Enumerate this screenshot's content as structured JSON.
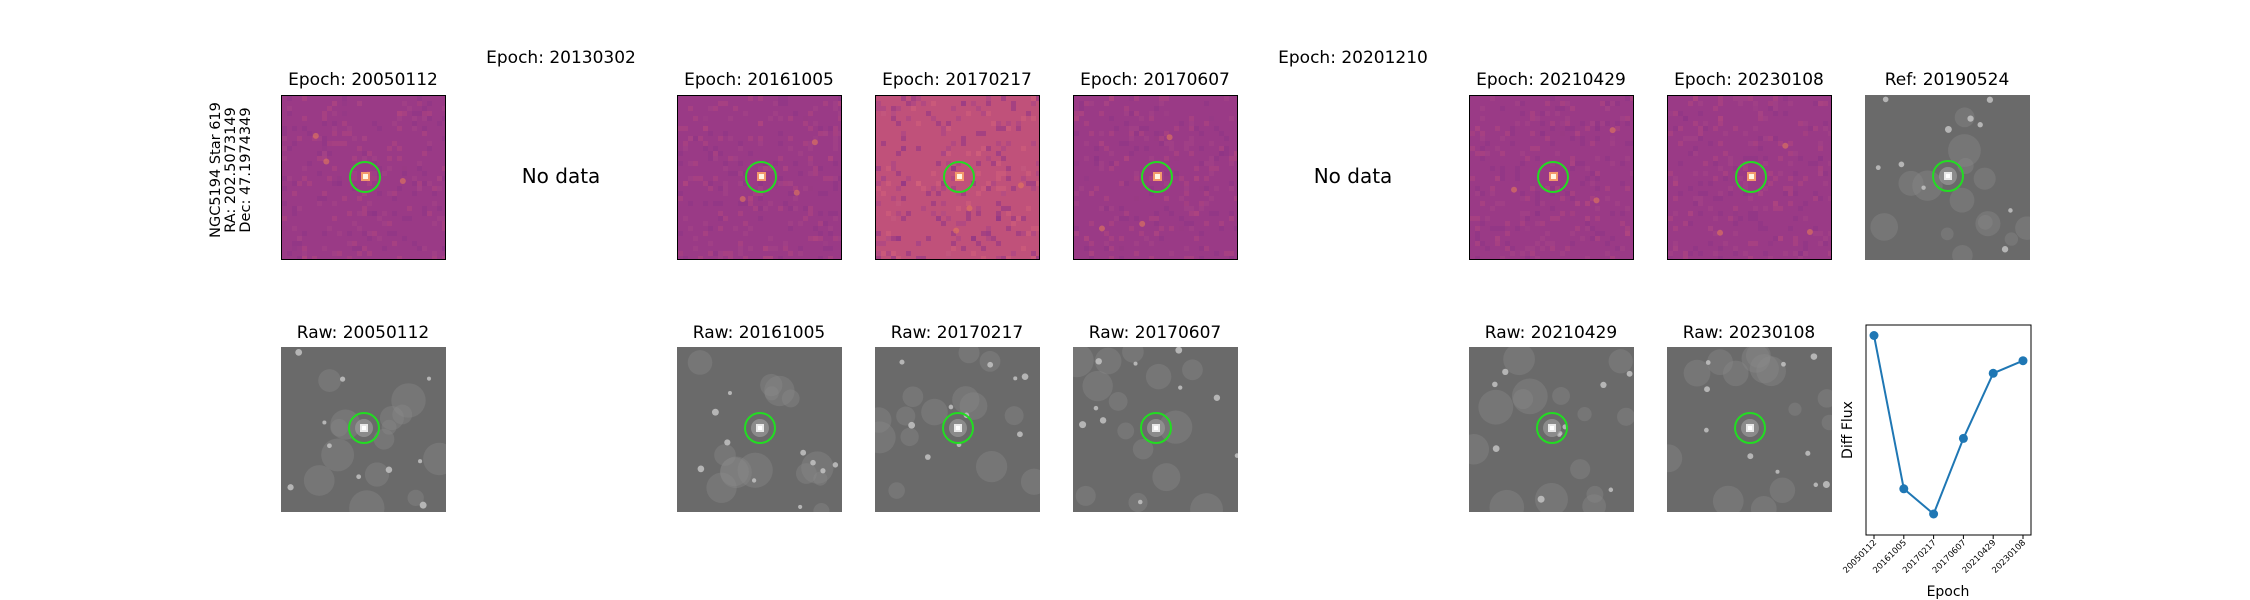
{
  "target": {
    "name": "NGC5194 Star 619",
    "ra_label": "RA: 202.5073149",
    "dec_label": "Dec: 47.1974349"
  },
  "top_row": [
    {
      "title": "Epoch: 20050112",
      "has_data": true
    },
    {
      "title": "Epoch: 20130302",
      "has_data": false,
      "nodata_text": "No data"
    },
    {
      "title": "Epoch: 20161005",
      "has_data": true
    },
    {
      "title": "Epoch: 20170217",
      "has_data": true
    },
    {
      "title": "Epoch: 20170607",
      "has_data": true
    },
    {
      "title": "Epoch: 20201210",
      "has_data": false,
      "nodata_text": "No data"
    },
    {
      "title": "Epoch: 20210429",
      "has_data": true
    },
    {
      "title": "Epoch: 20230108",
      "has_data": true
    },
    {
      "title": "Ref: 20190524",
      "has_data": true
    }
  ],
  "bottom_row": [
    {
      "title": "Raw: 20050112"
    },
    {
      "title": ""
    },
    {
      "title": "Raw: 20161005"
    },
    {
      "title": "Raw: 20170217"
    },
    {
      "title": "Raw: 20170607"
    },
    {
      "title": ""
    },
    {
      "title": "Raw: 20210429"
    },
    {
      "title": "Raw: 20230108"
    }
  ],
  "colors": {
    "diff_background": "#9a3a86",
    "diff_background_bright": "#c0517a",
    "raw_background": "#6a6a6a",
    "circle": "#22dd22",
    "line": "#1f77b4"
  },
  "chart_data": {
    "type": "line",
    "categories": [
      "20050112",
      "20161005",
      "20170217",
      "20170607",
      "20210429",
      "20230108"
    ],
    "values": [
      0.95,
      0.22,
      0.1,
      0.46,
      0.77,
      0.83
    ],
    "xlabel": "Epoch",
    "ylabel": "Diff Flux",
    "ylim": [
      0,
      1
    ],
    "grid": false,
    "marker": "circle"
  }
}
